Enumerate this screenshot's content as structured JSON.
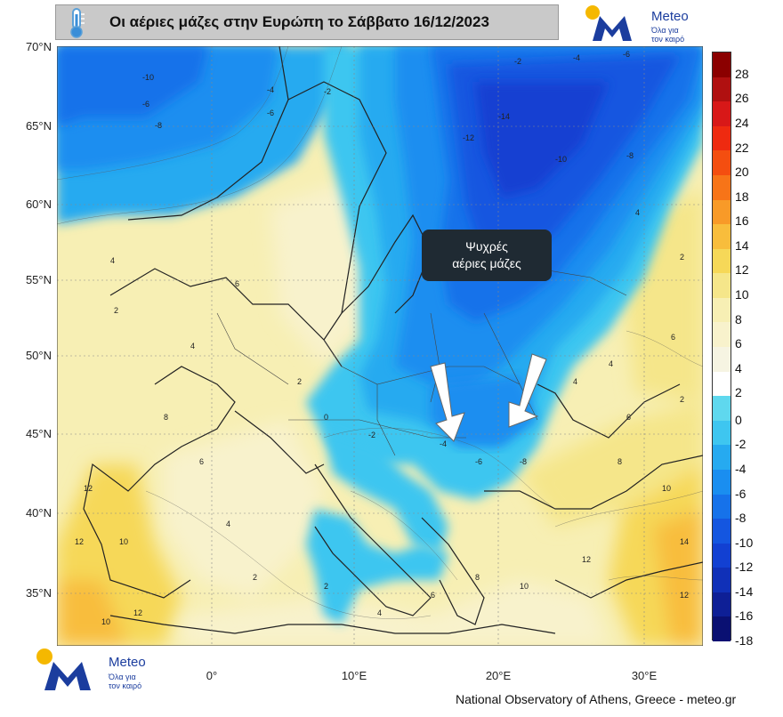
{
  "title": "Οι αέριες μάζες στην Ευρώπη το Σάββατο 16/12/2023",
  "icons": {
    "thermometer": "thermometer-icon",
    "logo": "meteo-logo-icon",
    "arrows": "down-arrow-icon"
  },
  "logo_top": {
    "name": "Meteo",
    "tagline_1": "Όλα για",
    "tagline_2": "τον καιρό"
  },
  "logo_bottom": {
    "name": "Meteo",
    "tagline_1": "Όλα για",
    "tagline_2": "τον καιρό"
  },
  "latitude_labels": [
    "70°N",
    "65°N",
    "60°N",
    "55°N",
    "50°N",
    "45°N",
    "40°N",
    "35°N"
  ],
  "longitude_labels": [
    "0°",
    "10°E",
    "20°E",
    "30°E"
  ],
  "annotation": {
    "line1": "Ψυχρές",
    "line2": "αέριες μάζες"
  },
  "colorbar": {
    "labels": [
      "28",
      "26",
      "24",
      "22",
      "20",
      "18",
      "16",
      "14",
      "12",
      "10",
      "8",
      "6",
      "4",
      "2",
      "0",
      "-2",
      "-4",
      "-6",
      "-8",
      "-10",
      "-12",
      "-14",
      "-16",
      "-18"
    ],
    "colors": [
      "#8b0000",
      "#b01010",
      "#d81818",
      "#ee2a10",
      "#f44e10",
      "#f77418",
      "#f89a28",
      "#f8bd3c",
      "#f6d858",
      "#f5e68a",
      "#f7efb4",
      "#f8f2cc",
      "#f6f4e2",
      "#ffffff",
      "#5fd8ee",
      "#3ec6f0",
      "#26aaf0",
      "#1a8ef0",
      "#1672ea",
      "#1456e0",
      "#1240d2",
      "#1030b8",
      "#0e1f96",
      "#0a1072"
    ]
  },
  "contour_labels": [
    "-10",
    "-6",
    "-4",
    "-2",
    "-8",
    "-6",
    "-12",
    "-14",
    "-10",
    "-8",
    "-6",
    "-4",
    "-2",
    "4",
    "2",
    "6",
    "4",
    "2",
    "0",
    "-2",
    "-4",
    "-6",
    "-8",
    "-8",
    "4",
    "2",
    "6",
    "4",
    "2",
    "12",
    "10",
    "12",
    "10",
    "12",
    "8",
    "6",
    "4",
    "2",
    "2",
    "4",
    "6",
    "8",
    "10",
    "12",
    "14",
    "12",
    "10",
    "8",
    "6",
    "4"
  ],
  "credit": "National Observatory of Athens, Greece - meteo.gr",
  "colors": {
    "cold_blue": "#1456e0",
    "warm_yellow": "#f6d858",
    "arrow": "#ffffff"
  }
}
